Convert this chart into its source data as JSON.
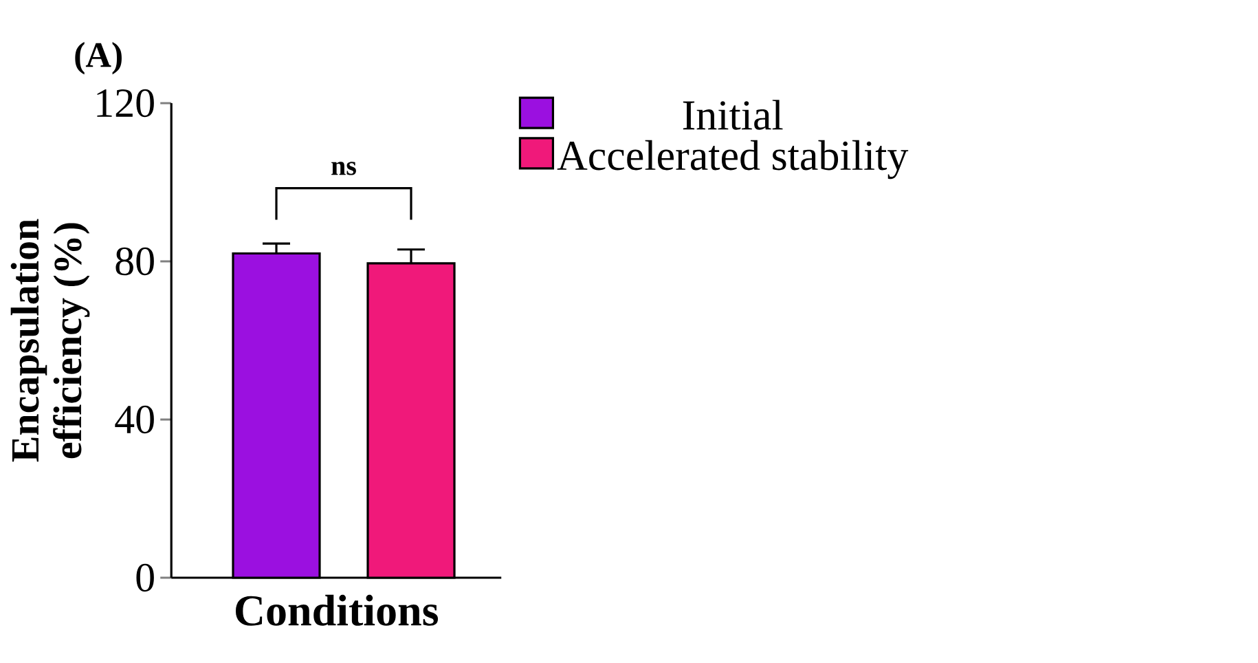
{
  "chart_data": {
    "type": "bar",
    "xlabel": "Conditions",
    "ylabel": "Encapsulation\nefficiency (%)",
    "categories": [
      null
    ],
    "series": [
      {
        "name": "Initial",
        "color": "#9b10e0",
        "values": [
          82
        ],
        "errors": [
          2.5
        ]
      },
      {
        "name": "Accelerated stability",
        "color": "#f0197a",
        "values": [
          79.5
        ],
        "errors": [
          3.5
        ]
      }
    ],
    "ylim": [
      0,
      120
    ],
    "yticks": [
      0,
      40,
      80,
      120
    ],
    "legend": "top right",
    "grid": false,
    "annotations": [
      "(A)",
      "ns"
    ]
  }
}
